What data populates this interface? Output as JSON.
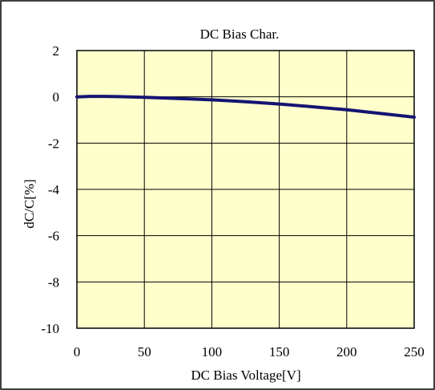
{
  "chart_data": {
    "type": "line",
    "title": "DC Bias Char.",
    "xlabel": "DC Bias Voltage[V]",
    "ylabel": "dC/C[%]",
    "xlim": [
      0,
      250
    ],
    "ylim": [
      -10,
      2
    ],
    "x_ticks": [
      "0",
      "50",
      "100",
      "150",
      "200",
      "250"
    ],
    "y_ticks": [
      "2",
      "0",
      "-2",
      "-4",
      "-6",
      "-8",
      "-10"
    ],
    "grid": true,
    "legend": "none",
    "colors": {
      "plot_background": "#FFFFCC",
      "line": "#141473",
      "grid": "#000000"
    },
    "series": [
      {
        "x": [
          0,
          10,
          20,
          30,
          50,
          75,
          100,
          125,
          150,
          175,
          200,
          225,
          250
        ],
        "y": [
          0.0,
          0.02,
          0.02,
          0.01,
          -0.02,
          -0.07,
          -0.13,
          -0.21,
          -0.31,
          -0.43,
          -0.56,
          -0.72,
          -0.88
        ]
      }
    ]
  }
}
